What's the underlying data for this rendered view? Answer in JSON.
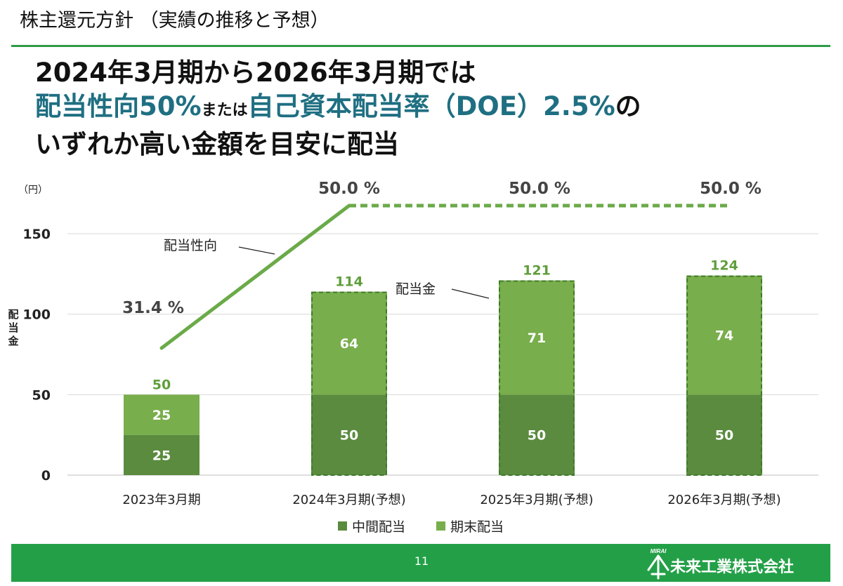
{
  "title": "株主還元方針 （実績の推移と予想）",
  "headline": {
    "line1": "2024年3月期から2026年3月期では",
    "line2_accent1": "配当性向50%",
    "line2_small": "または",
    "line2_accent2": "自己資本配当率（DOE）2.5%",
    "line2_tail": "の",
    "line3": "いずれか高い金額を目安に配当"
  },
  "chart_data": {
    "type": "bar",
    "stacked": true,
    "unit_label": "（円）",
    "ylabel": "配当金",
    "ylim": [
      0,
      150
    ],
    "yticks": [
      0,
      50,
      100,
      150
    ],
    "categories": [
      "2023年3月期",
      "2024年3月期(予想)",
      "2025年3月期(予想)",
      "2026年3月期(予想)"
    ],
    "forecast": [
      false,
      true,
      true,
      true
    ],
    "series": [
      {
        "name": "中間配当",
        "values": [
          25,
          50,
          50,
          50
        ],
        "color": "#5a8b3e"
      },
      {
        "name": "期末配当",
        "values": [
          25,
          64,
          71,
          74
        ],
        "color": "#78ae4b"
      }
    ],
    "totals": [
      50,
      114,
      121,
      124
    ],
    "total_label_color": "#5f9e3c",
    "payout_ratio": {
      "name": "配当性向",
      "values": [
        31.4,
        50.0,
        50.0,
        50.0
      ],
      "labels": [
        "31.4 %",
        "50.0 %",
        "50.0 %",
        "50.0 %"
      ],
      "color": "#6aaa48"
    },
    "callouts": {
      "payout": "配当性向",
      "dividend": "配当金"
    },
    "legend_position": "bottom"
  },
  "footer": {
    "page_number": "11",
    "company": "未来工業株式会社",
    "logo_text": "MIRAI"
  },
  "colors": {
    "rule": "#2e9b47",
    "footer": "#23a047",
    "accent_text": "#1f6f82"
  }
}
